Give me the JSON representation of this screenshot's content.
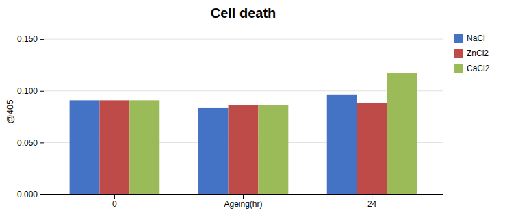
{
  "chart_data": {
    "type": "bar",
    "title": "Cell death",
    "ylabel": "@405",
    "categories": [
      "0",
      "Ageing(hr)",
      "24"
    ],
    "series": [
      {
        "name": "NaCl",
        "color": "#4472C4",
        "values": [
          0.091,
          0.084,
          0.096
        ]
      },
      {
        "name": "ZnCl2",
        "color": "#BE4B48",
        "values": [
          0.091,
          0.086,
          0.088
        ]
      },
      {
        "name": "CaCl2",
        "color": "#9BBB59",
        "values": [
          0.091,
          0.086,
          0.117
        ]
      }
    ],
    "ylim": [
      0.0,
      0.16
    ],
    "yticks": [
      {
        "value": 0.0,
        "label": "0.000"
      },
      {
        "value": 0.05,
        "label": "0.050"
      },
      {
        "value": 0.1,
        "label": "0.100"
      },
      {
        "value": 0.15,
        "label": "0.150"
      }
    ],
    "grid": true,
    "legend": "right"
  }
}
